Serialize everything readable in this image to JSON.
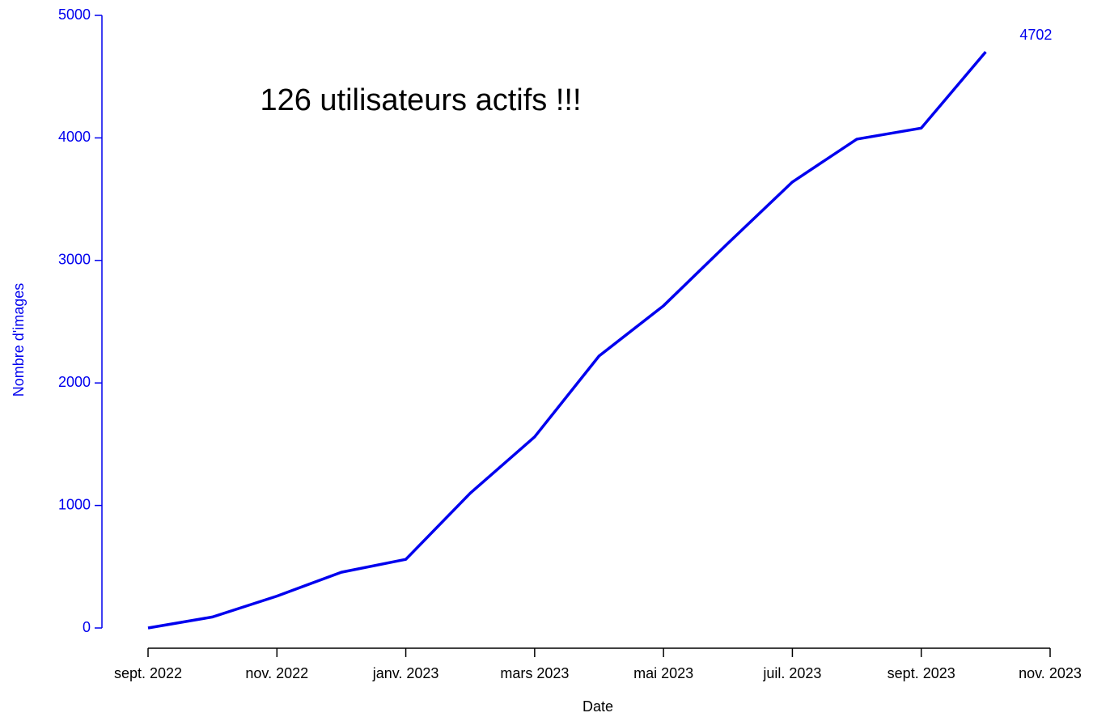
{
  "chart_data": {
    "type": "line",
    "annotation": "126 utilisateurs actifs !!!",
    "xlabel": "Date",
    "ylabel": "Nombre d'images",
    "x": [
      "2022-09",
      "2022-10",
      "2022-11",
      "2022-12",
      "2023-01",
      "2023-02",
      "2023-03",
      "2023-04",
      "2023-05",
      "2023-06",
      "2023-07",
      "2023-08",
      "2023-09",
      "2023-10"
    ],
    "series": [
      {
        "name": "Nombre d'images",
        "color": "#0000ee",
        "values": [
          0,
          90,
          260,
          455,
          560,
          1100,
          1560,
          2220,
          2630,
          3140,
          3640,
          3990,
          4080,
          4702
        ]
      }
    ],
    "xlim": [
      "2022-09",
      "2023-11"
    ],
    "xticks": [
      {
        "value": "2022-09",
        "label": "sept. 2022"
      },
      {
        "value": "2022-11",
        "label": "nov. 2022"
      },
      {
        "value": "2023-01",
        "label": "janv. 2023"
      },
      {
        "value": "2023-03",
        "label": "mars 2023"
      },
      {
        "value": "2023-05",
        "label": "mai 2023"
      },
      {
        "value": "2023-07",
        "label": "juil. 2023"
      },
      {
        "value": "2023-09",
        "label": "sept. 2023"
      },
      {
        "value": "2023-11",
        "label": "nov. 2023"
      }
    ],
    "ylim": [
      0,
      5000
    ],
    "yticks": [
      0,
      1000,
      2000,
      3000,
      4000,
      5000
    ]
  }
}
